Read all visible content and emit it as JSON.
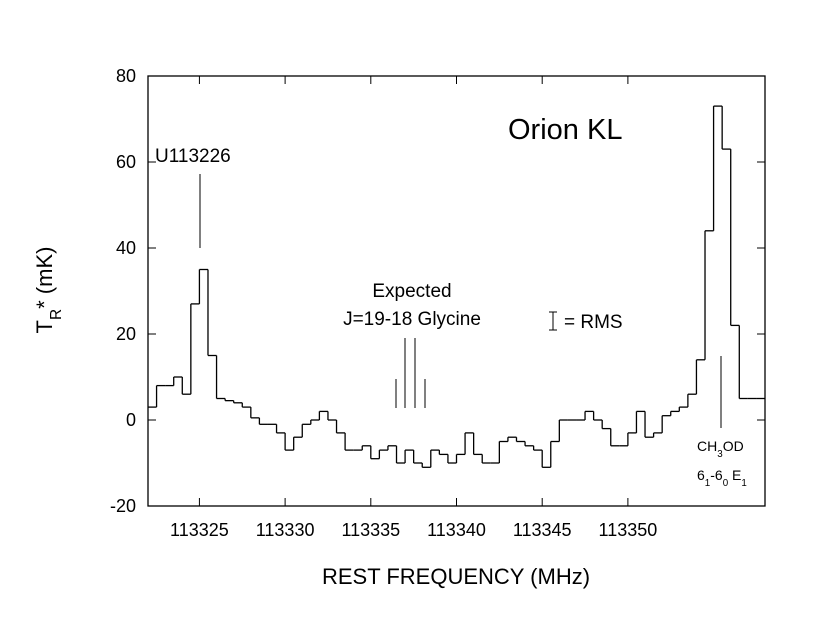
{
  "chart_data": {
    "type": "step",
    "x_label": "REST FREQUENCY (MHz)",
    "y_label_parts": [
      {
        "text": "T"
      },
      {
        "text": "R",
        "sub": true
      },
      {
        "text": "* (mK)"
      }
    ],
    "annotations": {
      "source": "Orion KL",
      "u_line": "U113226",
      "expected": "Expected",
      "glycine": "J=19-18 Glycine",
      "rms": "= RMS"
    },
    "ch3od_parts": [
      {
        "text": "CH"
      },
      {
        "text": "3",
        "sub": true
      },
      {
        "text": "OD"
      }
    ],
    "transition_parts": [
      {
        "text": "6"
      },
      {
        "text": "1",
        "sub": true
      },
      {
        "text": "-6"
      },
      {
        "text": "0",
        "sub": true
      },
      {
        "text": " E"
      },
      {
        "text": "1",
        "sub": true
      }
    ],
    "color": "#000000",
    "x": [
      113322,
      113322.5,
      113323,
      113323.5,
      113324,
      113324.5,
      113325,
      113325.5,
      113326,
      113326.5,
      113327,
      113327.5,
      113328,
      113328.5,
      113329,
      113329.5,
      113330,
      113330.5,
      113331,
      113331.5,
      113332,
      113332.5,
      113333,
      113333.5,
      113334,
      113334.5,
      113335,
      113335.5,
      113336,
      113336.5,
      113337,
      113337.5,
      113338,
      113338.5,
      113339,
      113339.5,
      113340,
      113340.5,
      113341,
      113341.5,
      113342,
      113342.5,
      113343,
      113343.5,
      113344,
      113344.5,
      113345,
      113345.5,
      113346,
      113346.5,
      113347,
      113347.5,
      113348,
      113348.5,
      113349,
      113349.5,
      113350,
      113350.5,
      113351,
      113351.5,
      113352,
      113352.5,
      113353,
      113353.5,
      113354,
      113354.5,
      113355,
      113355.5,
      113356,
      113356.5,
      113357,
      113357.5
    ],
    "values": [
      3,
      8,
      8,
      10,
      6,
      27,
      35,
      15,
      5,
      4.5,
      4,
      3,
      0.5,
      -1,
      -1,
      -3,
      -7,
      -4,
      -1,
      0,
      2,
      0,
      -3,
      -7,
      -7,
      -6,
      -9,
      -7,
      -6,
      -10,
      -7,
      -10,
      -11,
      -7,
      -8,
      -10,
      -8,
      -3,
      -8,
      -10,
      -10,
      -5,
      -4,
      -5,
      -6,
      -7,
      -11,
      -5,
      0,
      0,
      0,
      2,
      0,
      -2,
      -6,
      -6,
      -3,
      2,
      -4,
      -3,
      1,
      2,
      3,
      6,
      14,
      44,
      73,
      63,
      22,
      5,
      5,
      5
    ],
    "xlim": [
      113322,
      113358
    ],
    "ylim": [
      -20,
      80
    ],
    "xticks": [
      113325,
      113330,
      113335,
      113340,
      113345,
      113350
    ],
    "yticks": [
      -20,
      0,
      20,
      40,
      60,
      80
    ]
  }
}
